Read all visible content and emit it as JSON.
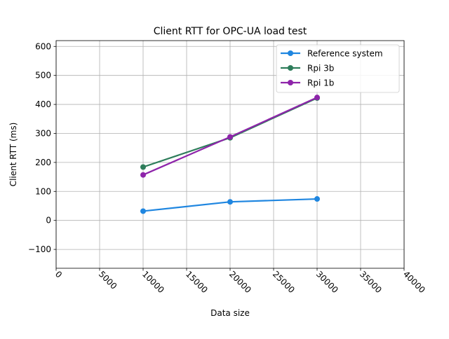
{
  "chart_data": {
    "type": "line",
    "title": "Client RTT for OPC-UA load test",
    "xlabel": "Data size",
    "ylabel": "Client RTT (ms)",
    "xlim": [
      0,
      40000
    ],
    "ylim": [
      -165,
      620
    ],
    "x_ticks": [
      0,
      5000,
      10000,
      15000,
      20000,
      25000,
      30000,
      35000,
      40000
    ],
    "y_ticks": [
      -100,
      0,
      100,
      200,
      300,
      400,
      500,
      600
    ],
    "grid": true,
    "legend_position": "top-right",
    "series": [
      {
        "name": "Reference system",
        "color": "#1f86e0",
        "x": [
          10000,
          20000,
          30000
        ],
        "y": [
          32,
          64,
          74
        ]
      },
      {
        "name": "Rpi 3b",
        "color": "#2e7d5b",
        "x": [
          10000,
          20000,
          30000
        ],
        "y": [
          184,
          285,
          422
        ]
      },
      {
        "name": "Rpi 1b",
        "color": "#8e24aa",
        "x": [
          10000,
          20000,
          30000
        ],
        "y": [
          157,
          288,
          424
        ]
      }
    ]
  }
}
